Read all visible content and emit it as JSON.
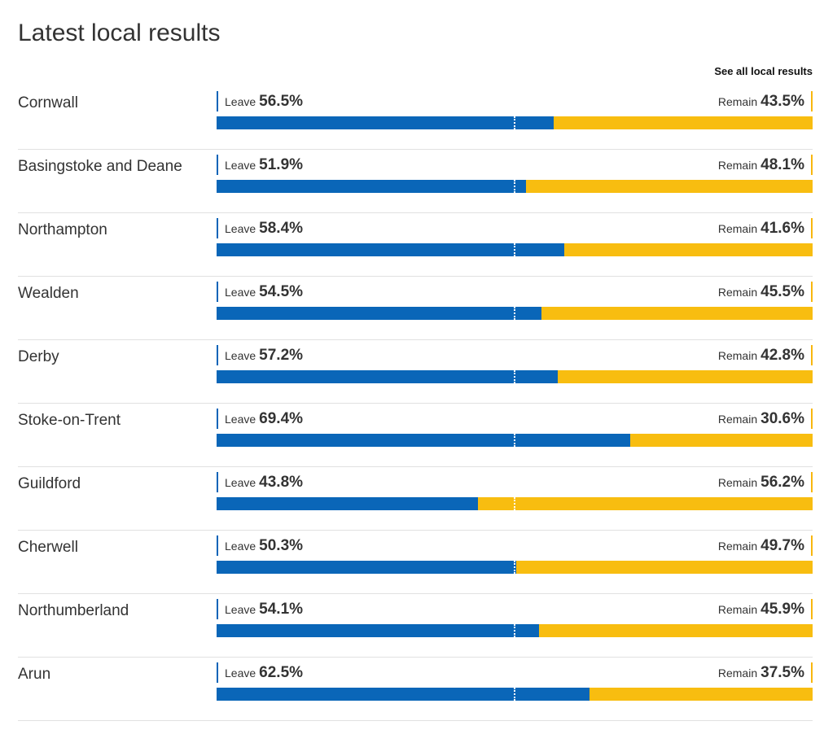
{
  "title": "Latest local results",
  "see_all_label": "See all local results",
  "leave_label": "Leave",
  "remain_label": "Remain",
  "colors": {
    "leave": "#0a66b8",
    "remain": "#f8bd10"
  },
  "chart_data": {
    "type": "bar",
    "stacked": true,
    "orientation": "horizontal",
    "title": "Latest local results",
    "categories": [
      "Cornwall",
      "Basingstoke and Deane",
      "Northampton",
      "Wealden",
      "Derby",
      "Stoke-on-Trent",
      "Guildford",
      "Cherwell",
      "Northumberland",
      "Arun"
    ],
    "series": [
      {
        "name": "Leave",
        "values": [
          56.5,
          51.9,
          58.4,
          54.5,
          57.2,
          69.4,
          43.8,
          50.3,
          54.1,
          62.5
        ]
      },
      {
        "name": "Remain",
        "values": [
          43.5,
          48.1,
          41.6,
          45.5,
          42.8,
          30.6,
          56.2,
          49.7,
          45.9,
          37.5
        ]
      }
    ],
    "xlim": [
      0,
      100
    ],
    "midline": 50
  },
  "rows": [
    {
      "name": "Cornwall",
      "leave": "56.5%",
      "remain": "43.5%"
    },
    {
      "name": "Basingstoke and Deane",
      "leave": "51.9%",
      "remain": "48.1%"
    },
    {
      "name": "Northampton",
      "leave": "58.4%",
      "remain": "41.6%"
    },
    {
      "name": "Wealden",
      "leave": "54.5%",
      "remain": "45.5%"
    },
    {
      "name": "Derby",
      "leave": "57.2%",
      "remain": "42.8%"
    },
    {
      "name": "Stoke-on-Trent",
      "leave": "69.4%",
      "remain": "30.6%"
    },
    {
      "name": "Guildford",
      "leave": "43.8%",
      "remain": "56.2%"
    },
    {
      "name": "Cherwell",
      "leave": "50.3%",
      "remain": "49.7%"
    },
    {
      "name": "Northumberland",
      "leave": "54.1%",
      "remain": "45.9%"
    },
    {
      "name": "Arun",
      "leave": "62.5%",
      "remain": "37.5%"
    }
  ]
}
